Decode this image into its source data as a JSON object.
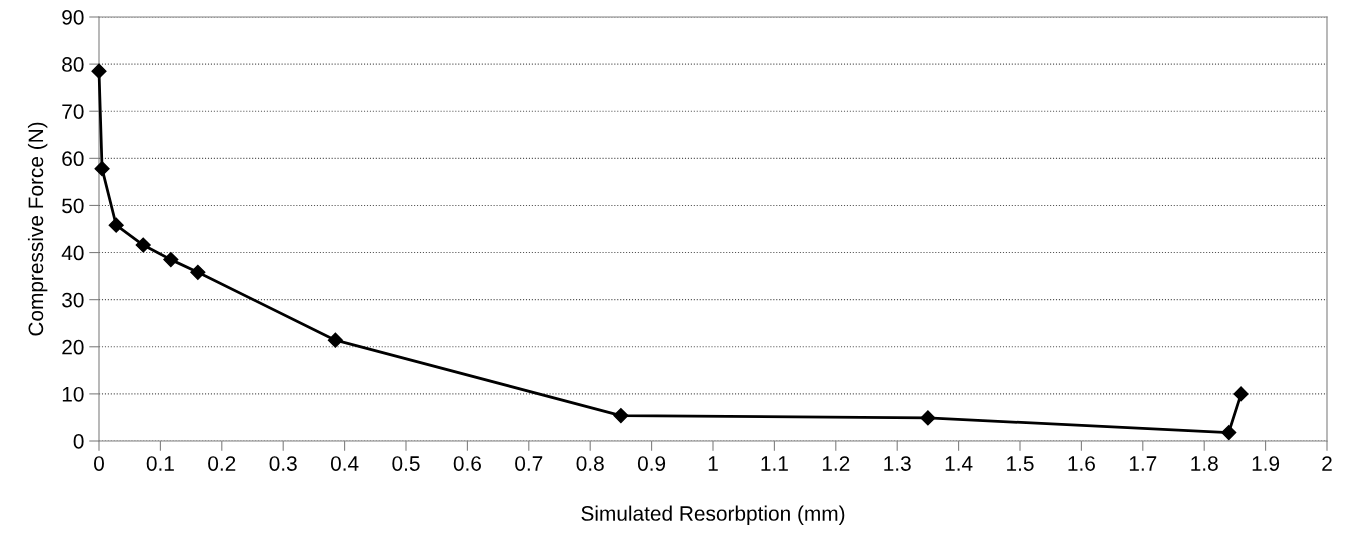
{
  "chart_data": {
    "type": "line",
    "xlabel": "Simulated Resorbption (mm)",
    "ylabel": "Compressive Force (N)",
    "x": [
      0,
      0.005,
      0.028,
      0.072,
      0.117,
      0.161,
      0.385,
      0.85,
      1.35,
      1.84,
      1.86
    ],
    "series": [
      {
        "color": "#000000",
        "values": [
          78.5,
          57.8,
          45.8,
          41.6,
          38.5,
          35.8,
          21.4,
          5.4,
          4.9,
          1.8,
          10.0
        ]
      }
    ],
    "xlim": [
      0,
      2
    ],
    "xticks": [
      0,
      0.1,
      0.2,
      0.3,
      0.4,
      0.5,
      0.6,
      0.7,
      0.8,
      0.9,
      1,
      1.1,
      1.2,
      1.3,
      1.4,
      1.5,
      1.6,
      1.7,
      1.8,
      1.9,
      2
    ],
    "ylim": [
      0,
      90
    ],
    "yticks": [
      0,
      10,
      20,
      30,
      40,
      50,
      60,
      70,
      80,
      90
    ],
    "grid": "y",
    "marker": "diamond",
    "line_style": "solid",
    "legend": false
  }
}
